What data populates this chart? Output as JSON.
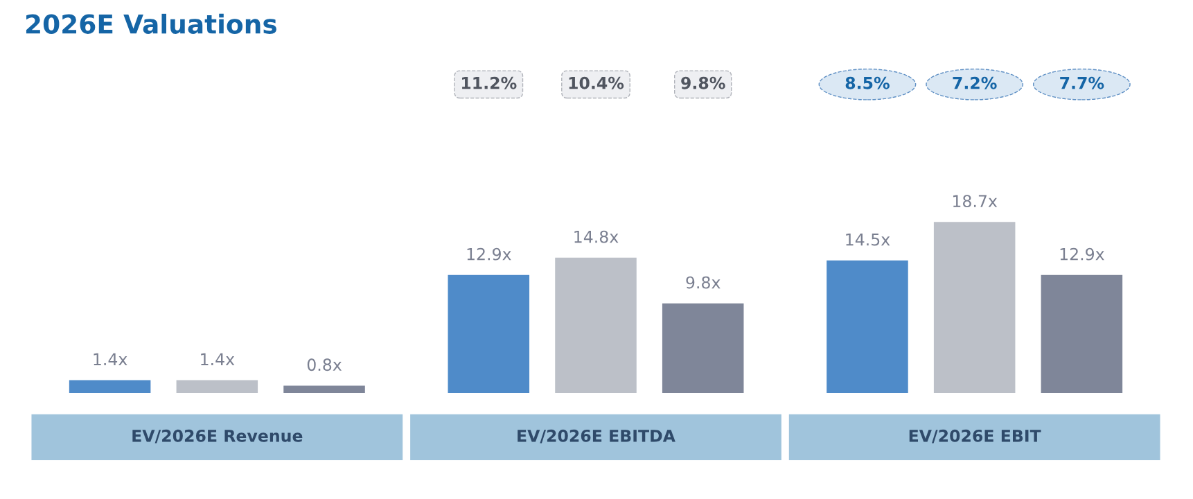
{
  "chart_data": {
    "type": "bar",
    "title": "2026E Valuations",
    "categories": [
      "EV/2026E Revenue",
      "EV/2026E EBITDA",
      "EV/2026E EBIT"
    ],
    "series": [
      {
        "color": "#4f8bc9",
        "values": [
          1.4,
          12.9,
          14.5
        ],
        "value_labels": [
          "1.4x",
          "12.9x",
          "14.5x"
        ]
      },
      {
        "color": "#bcc0c8",
        "values": [
          1.4,
          14.8,
          18.7
        ],
        "value_labels": [
          "1.4x",
          "14.8x",
          "18.7x"
        ]
      },
      {
        "color": "#7f8699",
        "values": [
          0.8,
          9.8,
          12.9
        ],
        "value_labels": [
          "0.8x",
          "9.8x",
          "12.9x"
        ]
      }
    ],
    "annotations": [
      "11.2%",
      "10.4%",
      "9.8%",
      "8.5%",
      "7.2%",
      "7.7%"
    ],
    "legend": false
  }
}
